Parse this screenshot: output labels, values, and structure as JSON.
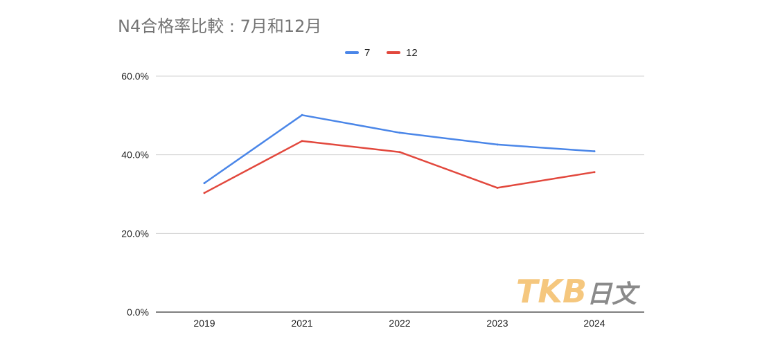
{
  "chart_data": {
    "type": "line",
    "title": "N4合格率比較 : 7月和12月",
    "categories": [
      "2019",
      "2021",
      "2022",
      "2023",
      "2024"
    ],
    "series": [
      {
        "name": "7",
        "color": "#4a86e8",
        "values": [
          32.8,
          50.1,
          45.6,
          42.6,
          40.9
        ]
      },
      {
        "name": "12",
        "color": "#e2483d",
        "values": [
          30.3,
          43.5,
          40.7,
          31.6,
          35.6
        ]
      }
    ],
    "ylim": [
      0,
      60
    ],
    "yticks": [
      0,
      20,
      40,
      60
    ],
    "ytick_labels": [
      "0.0%",
      "20.0%",
      "40.0%",
      "60.0%"
    ],
    "grid": true,
    "legend_position": "top-center",
    "xlabel": "",
    "ylabel": ""
  },
  "watermark": {
    "brand": "TKB",
    "suffix": "日文",
    "brand_color": "#f5c77e",
    "suffix_color": "#8a8a8a"
  }
}
